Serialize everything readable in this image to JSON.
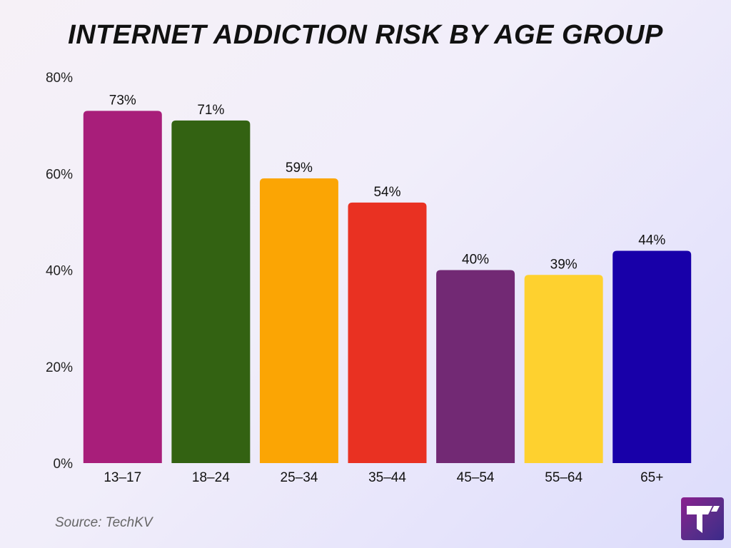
{
  "chart_data": {
    "type": "bar",
    "title": "INTERNET ADDICTION RISK BY AGE GROUP",
    "xlabel": "",
    "ylabel": "",
    "categories": [
      "13–17",
      "18–24",
      "25–34",
      "35–44",
      "45–54",
      "55–64",
      "65+"
    ],
    "values": [
      73,
      71,
      59,
      54,
      40,
      39,
      44
    ],
    "value_labels": [
      "73%",
      "71%",
      "59%",
      "54%",
      "40%",
      "39%",
      "44%"
    ],
    "colors": [
      "#a81e7a",
      "#336212",
      "#fba504",
      "#e93122",
      "#722974",
      "#fed12f",
      "#1800a9"
    ],
    "ylim": [
      0,
      80
    ],
    "yticks": [
      0,
      20,
      40,
      60,
      80
    ],
    "ytick_labels": [
      "0%",
      "20%",
      "40%",
      "60%",
      "80%"
    ],
    "grid": false,
    "legend": "none"
  },
  "source": "Source: TechKV",
  "logo": {
    "icon": "techkv-logo-icon",
    "colors": [
      "#8a1f8f",
      "#3b2a8a"
    ]
  }
}
